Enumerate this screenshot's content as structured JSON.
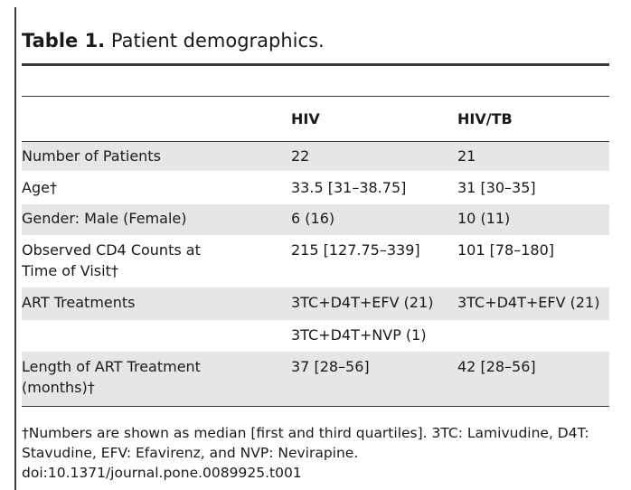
{
  "table": {
    "label": "Table 1.",
    "caption": "Patient demographics.",
    "headers": [
      "",
      "HIV",
      "HIV/TB"
    ],
    "rows": [
      {
        "c0": [
          "Number of Patients"
        ],
        "c1": "22",
        "c2": "21"
      },
      {
        "c0": [
          "Age†"
        ],
        "c1": "33.5 [31–38.75]",
        "c2": "31 [30–35]"
      },
      {
        "c0": [
          "Gender: Male (Female)"
        ],
        "c1": "6 (16)",
        "c2": "10 (11)"
      },
      {
        "c0": [
          "Observed CD4 Counts at",
          "Time of Visit†"
        ],
        "c1": "215 [127.75–339]",
        "c2": "101 [78–180]"
      },
      {
        "c0": [
          "ART Treatments"
        ],
        "c1": "3TC+D4T+EFV (21)",
        "c2": "3TC+D4T+EFV (21)"
      },
      {
        "c0": [
          ""
        ],
        "c1": "3TC+D4T+NVP (1)",
        "c2": ""
      },
      {
        "c0": [
          "Length of ART Treatment",
          "(months)†"
        ],
        "c1": "37 [28–56]",
        "c2": "42 [28–56]"
      }
    ],
    "footnote_lines": [
      "†Numbers are shown as median [first and third quartiles]. 3TC: Lamivudine, D4T:",
      "Stavudine, EFV: Efavirenz, and NVP: Nevirapine.",
      "doi:10.1371/journal.pone.0089925.t001"
    ]
  }
}
